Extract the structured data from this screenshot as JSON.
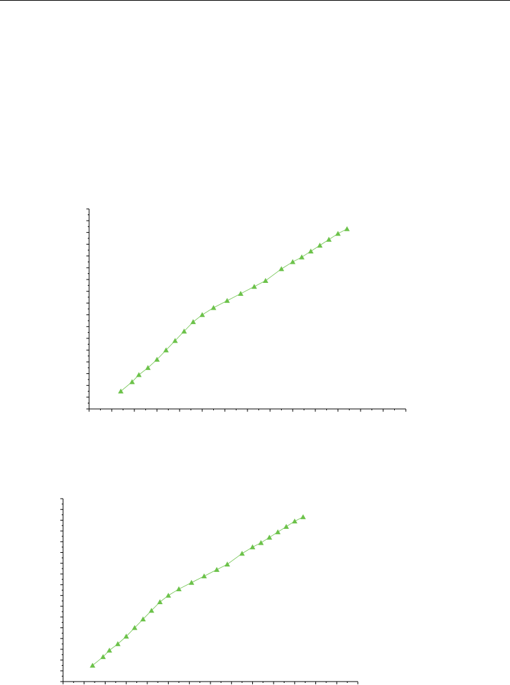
{
  "chart_data": [
    {
      "type": "scatter",
      "title": "",
      "xlabel": "",
      "ylabel": "",
      "xlim": [
        0,
        14
      ],
      "ylim": [
        0,
        17
      ],
      "grid": false,
      "series": [
        {
          "marker": "triangle-up",
          "color": "#6cc24a",
          "x": [
            1.4,
            1.9,
            2.2,
            2.6,
            3.0,
            3.4,
            3.8,
            4.2,
            4.6,
            5.0,
            5.5,
            6.1,
            6.7,
            7.3,
            7.8,
            8.5,
            9.0,
            9.4,
            9.8,
            10.2,
            10.6,
            11.0,
            11.4
          ],
          "y": [
            1.5,
            2.3,
            2.9,
            3.5,
            4.2,
            5.0,
            5.8,
            6.6,
            7.4,
            8.0,
            8.6,
            9.2,
            9.8,
            10.4,
            10.9,
            11.9,
            12.5,
            12.9,
            13.4,
            13.9,
            14.4,
            14.9,
            15.3
          ]
        }
      ]
    }
  ]
}
